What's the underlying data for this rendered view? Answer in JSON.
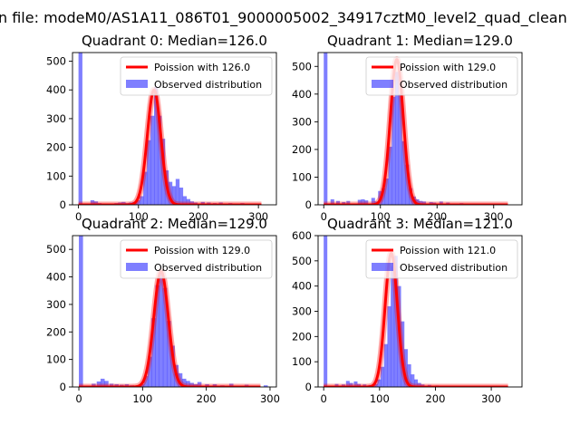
{
  "figure": {
    "suptitle": "n file: modeM0/AS1A11_086T01_9000005002_34917cztM0_level2_quad_clean"
  },
  "colors": {
    "poisson": "#ff0000",
    "observed": "#0000ff",
    "observed_alpha": 0.5
  },
  "chart_data": [
    {
      "type": "bar",
      "title": "Quadrant 0: Median=126.0",
      "legend": {
        "position": "upper right",
        "entries": [
          "Poission with 126.0",
          "Observed distribution"
        ]
      },
      "xlim": [
        -10,
        330
      ],
      "ylim": [
        0,
        530
      ],
      "xticks": [
        0,
        100,
        200,
        300
      ],
      "yticks": [
        0,
        100,
        200,
        300,
        400,
        500
      ],
      "poisson": {
        "name": "Poission with 126.0",
        "mean": 126.0,
        "peak": 400
      },
      "observed": {
        "name": "Observed distribution",
        "bin_width": 6.5,
        "bins": [
          [
            0,
            600
          ],
          [
            20,
            16
          ],
          [
            26,
            12
          ],
          [
            32,
            6
          ],
          [
            60,
            6
          ],
          [
            66,
            8
          ],
          [
            72,
            10
          ],
          [
            78,
            6
          ],
          [
            84,
            8
          ],
          [
            90,
            10
          ],
          [
            96,
            16
          ],
          [
            102,
            30
          ],
          [
            108,
            115
          ],
          [
            114,
            225
          ],
          [
            120,
            310
          ],
          [
            126,
            410
          ],
          [
            132,
            310
          ],
          [
            138,
            230
          ],
          [
            144,
            120
          ],
          [
            150,
            80
          ],
          [
            156,
            65
          ],
          [
            162,
            90
          ],
          [
            168,
            60
          ],
          [
            174,
            30
          ],
          [
            180,
            20
          ],
          [
            186,
            12
          ],
          [
            192,
            8
          ],
          [
            204,
            10
          ],
          [
            214,
            8
          ],
          [
            224,
            6
          ],
          [
            234,
            8
          ],
          [
            250,
            6
          ],
          [
            270,
            6
          ],
          [
            290,
            4
          ]
        ]
      }
    },
    {
      "type": "bar",
      "title": "Quadrant 1: Median=129.0",
      "legend": {
        "position": "upper right",
        "entries": [
          "Poission with 129.0",
          "Observed distribution"
        ]
      },
      "xlim": [
        -10,
        350
      ],
      "ylim": [
        0,
        550
      ],
      "xticks": [
        0,
        100,
        200,
        300
      ],
      "yticks": [
        0,
        100,
        200,
        300,
        400,
        500
      ],
      "poisson": {
        "name": "Poission with 129.0",
        "mean": 129.0,
        "peak": 525
      },
      "observed": {
        "name": "Observed distribution",
        "bin_width": 6.5,
        "bins": [
          [
            0,
            600
          ],
          [
            12,
            20
          ],
          [
            22,
            14
          ],
          [
            32,
            10
          ],
          [
            40,
            14
          ],
          [
            60,
            18
          ],
          [
            66,
            20
          ],
          [
            72,
            16
          ],
          [
            84,
            25
          ],
          [
            90,
            12
          ],
          [
            96,
            50
          ],
          [
            102,
            60
          ],
          [
            108,
            95
          ],
          [
            114,
            210
          ],
          [
            120,
            390
          ],
          [
            126,
            480
          ],
          [
            132,
            400
          ],
          [
            138,
            230
          ],
          [
            144,
            145
          ],
          [
            150,
            60
          ],
          [
            156,
            30
          ],
          [
            162,
            20
          ],
          [
            168,
            14
          ],
          [
            174,
            12
          ],
          [
            186,
            10
          ],
          [
            192,
            8
          ],
          [
            204,
            12
          ],
          [
            216,
            8
          ],
          [
            240,
            6
          ],
          [
            260,
            4
          ],
          [
            300,
            3
          ]
        ]
      }
    },
    {
      "type": "bar",
      "title": "Quadrant 2: Median=129.0",
      "legend": {
        "position": "upper right",
        "entries": [
          "Poission with 129.0",
          "Observed distribution"
        ]
      },
      "xlim": [
        -10,
        310
      ],
      "ylim": [
        0,
        550
      ],
      "xticks": [
        0,
        100,
        200,
        300
      ],
      "yticks": [
        0,
        100,
        200,
        300,
        400,
        500
      ],
      "poisson": {
        "name": "Poission with 129.0",
        "mean": 129.0,
        "peak": 420
      },
      "observed": {
        "name": "Observed distribution",
        "bin_width": 6.5,
        "bins": [
          [
            0,
            600
          ],
          [
            20,
            12
          ],
          [
            28,
            20
          ],
          [
            34,
            30
          ],
          [
            40,
            22
          ],
          [
            48,
            12
          ],
          [
            56,
            10
          ],
          [
            64,
            8
          ],
          [
            72,
            10
          ],
          [
            80,
            6
          ],
          [
            96,
            10
          ],
          [
            102,
            40
          ],
          [
            108,
            110
          ],
          [
            114,
            250
          ],
          [
            120,
            370
          ],
          [
            126,
            420
          ],
          [
            132,
            360
          ],
          [
            138,
            240
          ],
          [
            144,
            150
          ],
          [
            150,
            80
          ],
          [
            156,
            50
          ],
          [
            162,
            30
          ],
          [
            168,
            22
          ],
          [
            174,
            15
          ],
          [
            180,
            10
          ],
          [
            186,
            18
          ],
          [
            198,
            10
          ],
          [
            210,
            10
          ],
          [
            222,
            6
          ],
          [
            236,
            12
          ],
          [
            260,
            8
          ],
          [
            290,
            6
          ]
        ]
      }
    },
    {
      "type": "bar",
      "title": "Quadrant 3: Median=121.0",
      "legend": {
        "position": "upper right",
        "entries": [
          "Poission with 121.0",
          "Observed distribution"
        ]
      },
      "xlim": [
        -10,
        355
      ],
      "ylim": [
        0,
        600
      ],
      "xticks": [
        0,
        100,
        200,
        300
      ],
      "yticks": [
        0,
        100,
        200,
        300,
        400,
        500,
        600
      ],
      "poisson": {
        "name": "Poission with 121.0",
        "mean": 121.0,
        "peak": 530
      },
      "observed": {
        "name": "Observed distribution",
        "bin_width": 6.5,
        "bins": [
          [
            0,
            650
          ],
          [
            20,
            12
          ],
          [
            32,
            10
          ],
          [
            40,
            24
          ],
          [
            46,
            16
          ],
          [
            54,
            22
          ],
          [
            60,
            12
          ],
          [
            70,
            10
          ],
          [
            80,
            8
          ],
          [
            90,
            12
          ],
          [
            96,
            30
          ],
          [
            102,
            80
          ],
          [
            108,
            170
          ],
          [
            114,
            320
          ],
          [
            120,
            480
          ],
          [
            126,
            520
          ],
          [
            132,
            400
          ],
          [
            138,
            260
          ],
          [
            144,
            150
          ],
          [
            150,
            90
          ],
          [
            156,
            50
          ],
          [
            162,
            30
          ],
          [
            168,
            16
          ],
          [
            174,
            10
          ],
          [
            186,
            8
          ],
          [
            200,
            6
          ],
          [
            220,
            4
          ],
          [
            240,
            4
          ],
          [
            280,
            3
          ]
        ]
      }
    }
  ]
}
